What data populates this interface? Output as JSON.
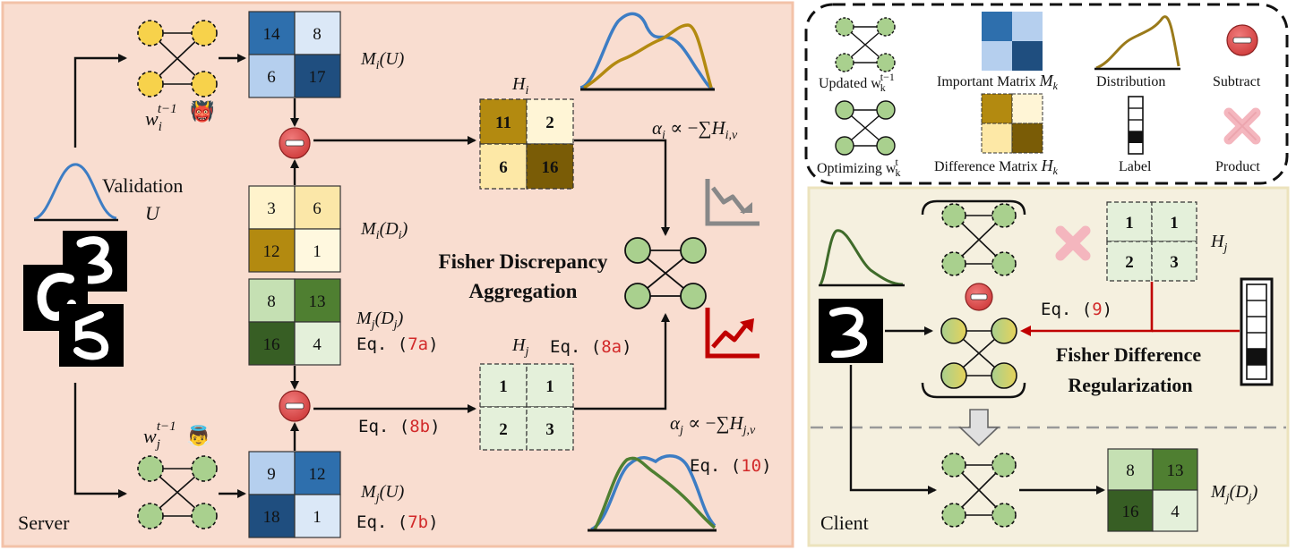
{
  "panels": {
    "server": "Server",
    "client": "Client"
  },
  "server": {
    "w_i": "w",
    "w_i_sub": "i",
    "w_i_sup": "t−1",
    "w_j": "w",
    "w_j_sub": "j",
    "w_j_sup": "t−1",
    "devil_emoji": "👹",
    "angel_emoji": "👼",
    "validation_label": "Validation",
    "validation_u": "U",
    "mi_u": {
      "values": [
        "14",
        "8",
        "6",
        "17"
      ],
      "label_main": "M",
      "label_sub": "i",
      "label_arg": "(U)"
    },
    "mi_di": {
      "values": [
        "3",
        "6",
        "12",
        "1"
      ],
      "label_main": "M",
      "label_sub": "i",
      "label_arg": "(D",
      "label_arg_sub": "i",
      "label_close": ")"
    },
    "mj_dj": {
      "values": [
        "8",
        "13",
        "16",
        "4"
      ],
      "label_main": "M",
      "label_sub": "j",
      "label_arg": "(D",
      "label_arg_sub": "j",
      "label_close": ")"
    },
    "mj_u": {
      "values": [
        "9",
        "12",
        "18",
        "1"
      ],
      "label_main": "M",
      "label_sub": "j",
      "label_arg": "(U)"
    },
    "h_i": {
      "values": [
        "11",
        "2",
        "6",
        "16"
      ],
      "label_main": "H",
      "label_sub": "i"
    },
    "h_j": {
      "values": [
        "1",
        "1",
        "2",
        "3"
      ],
      "label_main": "H",
      "label_sub": "j"
    },
    "eq_7a": {
      "prefix": "Eq. (",
      "ref": "7a",
      "suffix": ")"
    },
    "eq_7b": {
      "prefix": "Eq. (",
      "ref": "7b",
      "suffix": ")"
    },
    "eq_8a": {
      "prefix": "Eq. (",
      "ref": "8a",
      "suffix": ")"
    },
    "eq_8b": {
      "prefix": "Eq. (",
      "ref": "8b",
      "suffix": ")"
    },
    "eq_10": {
      "prefix": "Eq. (",
      "ref": "10",
      "suffix": ")"
    },
    "alpha_i": {
      "a": "α",
      "sub": "i",
      "rel": " ∝ −∑",
      "h": "H",
      "hsub": "i,v"
    },
    "alpha_j": {
      "a": "α",
      "sub": "j",
      "rel": " ∝ −∑",
      "h": "H",
      "hsub": "j,v"
    },
    "aggregation_line1": "Fisher Discrepancy",
    "aggregation_line2": "Aggregation"
  },
  "legend": {
    "updated": {
      "text": "Updated w",
      "sub": "k",
      "sup": "t−1"
    },
    "optimizing": {
      "text": "Optimizing w",
      "sub": "k",
      "sup": "t"
    },
    "important": {
      "text": "Important Matrix ",
      "m": "M",
      "sub": "k"
    },
    "difference": {
      "text": "Difference Matrix ",
      "m": "H",
      "sub": "k"
    },
    "distribution": "Distribution",
    "label": "Label",
    "subtract": "Subtract",
    "product": "Product"
  },
  "client": {
    "h_j": {
      "values": [
        "1",
        "1",
        "2",
        "3"
      ],
      "label_main": "H",
      "label_sub": "j"
    },
    "mj_dj": {
      "values": [
        "8",
        "13",
        "16",
        "4"
      ],
      "label_main": "M",
      "label_sub": "j",
      "label_arg": "(D",
      "label_arg_sub": "j",
      "label_close": ")"
    },
    "eq_9": {
      "prefix": "Eq. (",
      "ref": "9",
      "suffix": ")"
    },
    "regularization_line1": "Fisher Difference",
    "regularization_line2": "Regularization"
  },
  "colors": {
    "server_bg": "#f9ddd0",
    "client_bg": "#f5f0df",
    "accent_red": "#d22a2a",
    "blue_dark": "#2e6fad",
    "gold": "#b38a10",
    "green_dark": "#3f6b2a"
  }
}
